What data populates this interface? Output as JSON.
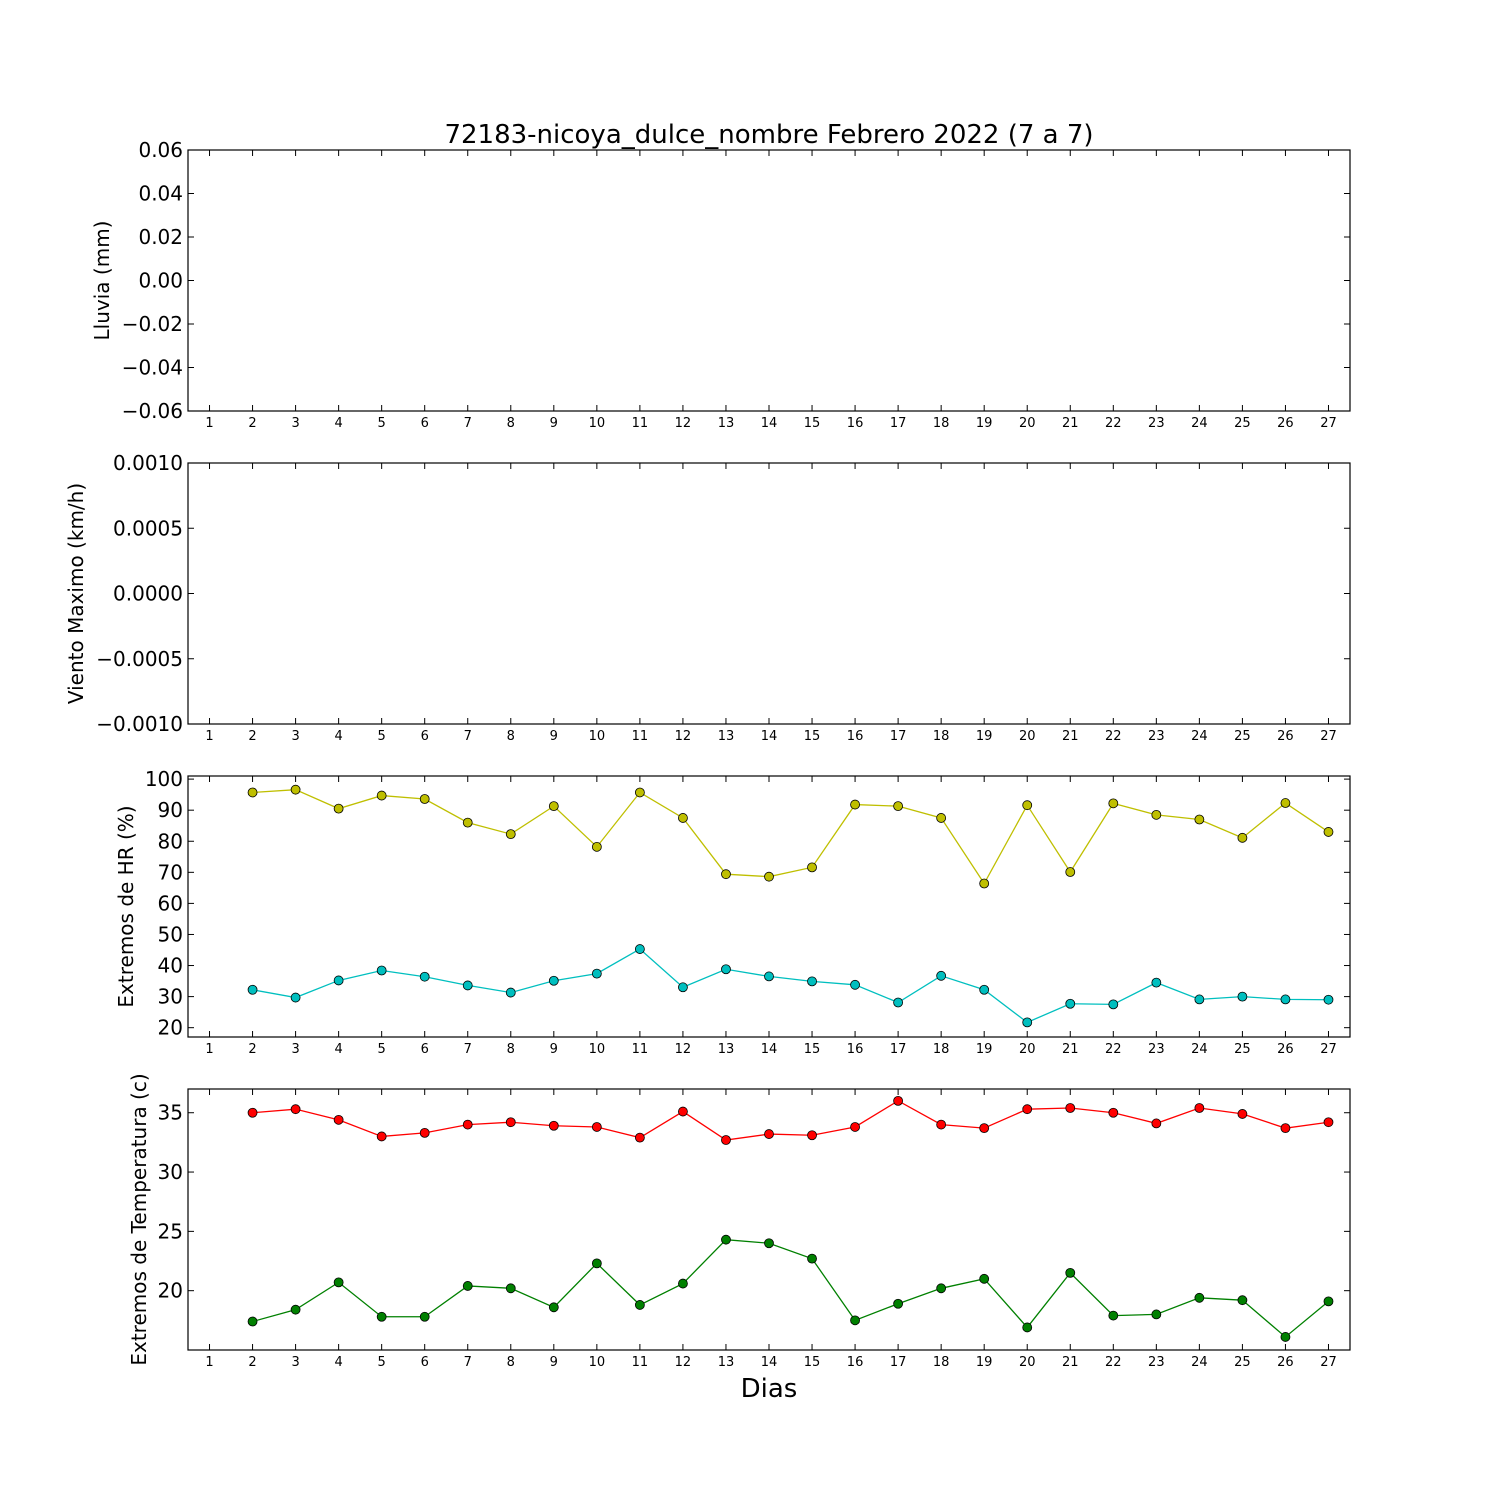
{
  "title": "72183-nicoya_dulce_nombre Febrero 2022  (7 a 7)",
  "xlabel": "Dias",
  "chart_data": [
    {
      "type": "bar",
      "name": "lluvia",
      "ylabel": "Lluvia (mm)",
      "x": [
        2,
        3,
        4,
        5,
        6,
        7,
        8,
        9,
        10,
        11,
        12,
        13,
        14,
        15,
        16,
        17,
        18,
        19,
        20,
        21,
        22,
        23,
        24,
        25,
        26,
        27
      ],
      "values": [
        0,
        0,
        0,
        0,
        0,
        0,
        0,
        0,
        0,
        0,
        0,
        0,
        0,
        0,
        0,
        0,
        0,
        0,
        0,
        0,
        0,
        0,
        0,
        0,
        0,
        0
      ],
      "ylim": [
        -0.06,
        0.06
      ],
      "yticks": [
        -0.06,
        -0.04,
        -0.02,
        0.0,
        0.02,
        0.04,
        0.06
      ],
      "ytick_labels": [
        "−0.06",
        "−0.04",
        "−0.02",
        "0.00",
        "0.02",
        "0.04",
        "0.06"
      ],
      "xticks": [
        1,
        2,
        3,
        4,
        5,
        6,
        7,
        8,
        9,
        10,
        11,
        12,
        13,
        14,
        15,
        16,
        17,
        18,
        19,
        20,
        21,
        22,
        23,
        24,
        25,
        26,
        27
      ],
      "xlim": [
        0.5,
        27.5
      ],
      "bar_color": "#000000"
    },
    {
      "type": "line",
      "name": "viento",
      "ylabel": "Viento Maximo (km/h)",
      "series": [],
      "ylim": [
        -0.001,
        0.001
      ],
      "yticks": [
        -0.001,
        -0.0005,
        0.0,
        0.0005,
        0.001
      ],
      "ytick_labels": [
        "−0.0010",
        "−0.0005",
        "0.0000",
        "0.0005",
        "0.0010"
      ],
      "xticks": [
        1,
        2,
        3,
        4,
        5,
        6,
        7,
        8,
        9,
        10,
        11,
        12,
        13,
        14,
        15,
        16,
        17,
        18,
        19,
        20,
        21,
        22,
        23,
        24,
        25,
        26,
        27
      ],
      "xlim": [
        0.5,
        27.5
      ]
    },
    {
      "type": "line",
      "name": "hr",
      "ylabel": "Extremos de HR (%)",
      "x": [
        2,
        3,
        4,
        5,
        6,
        7,
        8,
        9,
        10,
        11,
        12,
        13,
        14,
        15,
        16,
        17,
        18,
        19,
        20,
        21,
        22,
        23,
        24,
        25,
        26,
        27
      ],
      "series": [
        {
          "color": "#bfbf00",
          "values": [
            95.7,
            96.6,
            90.5,
            94.7,
            93.6,
            86,
            82.3,
            91.3,
            78.2,
            95.7,
            87.5,
            69.4,
            68.6,
            71.6,
            91.8,
            91.3,
            87.5,
            66.4,
            91.6,
            70.1,
            92.2,
            88.5,
            87,
            81.1,
            92.3,
            83
          ]
        },
        {
          "color": "#00bfbf",
          "values": [
            32.2,
            29.7,
            35.2,
            38.4,
            36.4,
            33.6,
            31.3,
            35.1,
            37.4,
            45.3,
            33,
            38.8,
            36.5,
            34.9,
            33.8,
            28.1,
            36.7,
            32.2,
            21.7,
            27.7,
            27.5,
            34.5,
            29.1,
            30,
            29.1,
            29
          ]
        }
      ],
      "ylim": [
        17,
        101
      ],
      "yticks": [
        20,
        30,
        40,
        50,
        60,
        70,
        80,
        90,
        100
      ],
      "ytick_labels": [
        "20",
        "30",
        "40",
        "50",
        "60",
        "70",
        "80",
        "90",
        "100"
      ],
      "xticks": [
        1,
        2,
        3,
        4,
        5,
        6,
        7,
        8,
        9,
        10,
        11,
        12,
        13,
        14,
        15,
        16,
        17,
        18,
        19,
        20,
        21,
        22,
        23,
        24,
        25,
        26,
        27
      ],
      "xlim": [
        0.5,
        27.5
      ]
    },
    {
      "type": "line",
      "name": "temperatura",
      "ylabel": "Extremos de Temperatura (c)",
      "x": [
        2,
        3,
        4,
        5,
        6,
        7,
        8,
        9,
        10,
        11,
        12,
        13,
        14,
        15,
        16,
        17,
        18,
        19,
        20,
        21,
        22,
        23,
        24,
        25,
        26,
        27
      ],
      "series": [
        {
          "color": "#ff0000",
          "values": [
            35,
            35.3,
            34.4,
            33,
            33.3,
            34,
            34.2,
            33.9,
            33.8,
            32.9,
            35.1,
            32.7,
            33.2,
            33.1,
            33.8,
            36,
            34,
            33.7,
            35.3,
            35.4,
            35,
            34.1,
            35.4,
            34.9,
            33.7,
            34.2
          ]
        },
        {
          "color": "#008000",
          "values": [
            17.4,
            18.4,
            20.7,
            17.8,
            17.8,
            20.4,
            20.2,
            18.6,
            22.3,
            18.8,
            20.6,
            24.3,
            24,
            22.7,
            17.5,
            18.9,
            20.2,
            21,
            16.9,
            21.5,
            17.9,
            18,
            19.4,
            19.2,
            16.1,
            19.1
          ]
        }
      ],
      "ylim": [
        15,
        37
      ],
      "yticks": [
        20,
        25,
        30,
        35
      ],
      "ytick_labels": [
        "20",
        "25",
        "30",
        "35"
      ],
      "xticks": [
        1,
        2,
        3,
        4,
        5,
        6,
        7,
        8,
        9,
        10,
        11,
        12,
        13,
        14,
        15,
        16,
        17,
        18,
        19,
        20,
        21,
        22,
        23,
        24,
        25,
        26,
        27
      ],
      "xlim": [
        0.5,
        27.5
      ]
    }
  ]
}
